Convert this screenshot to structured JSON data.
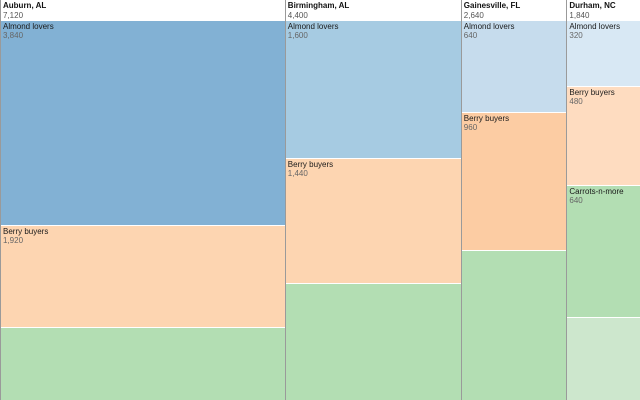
{
  "chart_data": {
    "type": "mekko",
    "categories": [
      "Auburn, AL",
      "Birmingham, AL",
      "Gainesville, FL",
      "Durham, NC"
    ],
    "category_totals": [
      "7,120",
      "4,400",
      "2,640",
      "1,840"
    ],
    "columns": [
      {
        "name": "Auburn, AL",
        "total_label": "7,120",
        "total": 7120,
        "segments": [
          {
            "name": "Almond lovers",
            "label": "3,840",
            "value": 3840,
            "color": "#82b1d4"
          },
          {
            "name": "Berry buyers",
            "label": "1,920",
            "value": 1920,
            "color": "#fdd5b1"
          },
          {
            "name": "",
            "label": "",
            "value": 1360,
            "color": "#b3deb3"
          }
        ]
      },
      {
        "name": "Birmingham, AL",
        "total_label": "4,400",
        "total": 4400,
        "segments": [
          {
            "name": "Almond lovers",
            "label": "1,600",
            "value": 1600,
            "color": "#a6cbe2"
          },
          {
            "name": "Berry buyers",
            "label": "1,440",
            "value": 1440,
            "color": "#fdd5b1"
          },
          {
            "name": "",
            "label": "",
            "value": 1360,
            "color": "#b3deb3"
          }
        ]
      },
      {
        "name": "Gainesville, FL",
        "total_label": "2,640",
        "total": 2640,
        "segments": [
          {
            "name": "Almond lovers",
            "label": "640",
            "value": 640,
            "color": "#c6dced"
          },
          {
            "name": "Berry buyers",
            "label": "960",
            "value": 960,
            "color": "#fccca3"
          },
          {
            "name": "",
            "label": "",
            "value": 1040,
            "color": "#b3deb3"
          }
        ]
      },
      {
        "name": "Durham, NC",
        "total_label": "1,840",
        "total": 1840,
        "segments": [
          {
            "name": "Almond lovers",
            "label": "320",
            "value": 320,
            "color": "#d8e8f4"
          },
          {
            "name": "Berry buyers",
            "label": "480",
            "value": 480,
            "color": "#fedcc0"
          },
          {
            "name": "Carrots-n-more",
            "label": "640",
            "value": 640,
            "color": "#b3deb3"
          },
          {
            "name": "",
            "label": "",
            "value": 400,
            "color": "#cde7cd"
          }
        ]
      }
    ]
  }
}
